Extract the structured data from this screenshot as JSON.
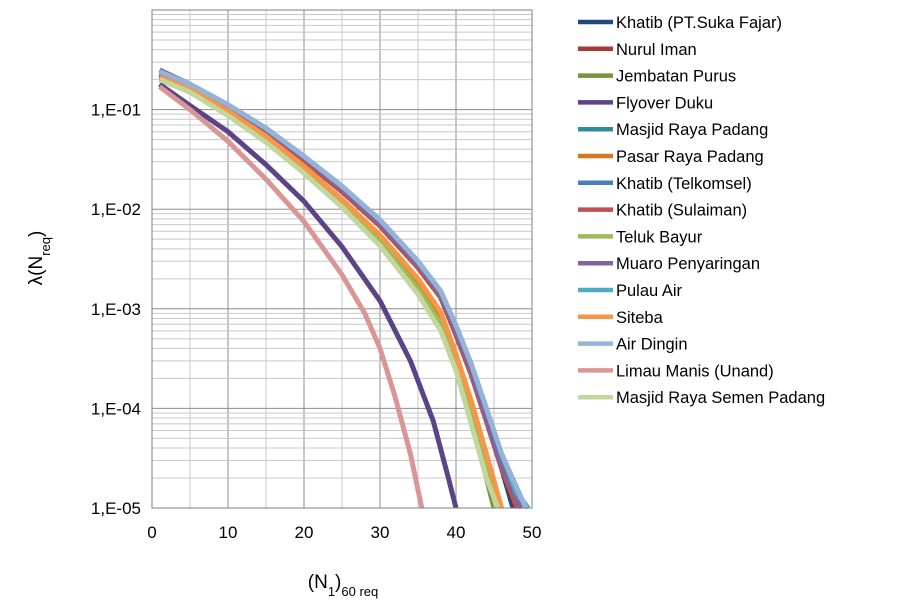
{
  "chart_data": {
    "type": "line",
    "title": "",
    "xlabel_parts": {
      "main": "(N",
      "sub1": "1",
      "mid": ")",
      "sub2": "60 req"
    },
    "ylabel_parts": {
      "main": "λ(N",
      "sub": "req",
      "end": ")"
    },
    "xlim": [
      0,
      50
    ],
    "ylim": [
      1e-05,
      1
    ],
    "y_scale": "log",
    "x_ticks": [
      0,
      10,
      20,
      30,
      40,
      50
    ],
    "x_tick_labels": [
      "0",
      "10",
      "20",
      "30",
      "40",
      "50"
    ],
    "y_ticks": [
      1e-05,
      0.0001,
      0.001,
      0.01,
      0.1
    ],
    "y_tick_labels": [
      "1,E-05",
      "1,E-04",
      "1,E-03",
      "1,E-02",
      "1,E-01"
    ],
    "grid": true,
    "legend_position": "right",
    "series": [
      {
        "name": "Khatib (PT.Suka Fajar)",
        "color": "#1f497d",
        "x": [
          1,
          5,
          10,
          15,
          20,
          25,
          30,
          35,
          38,
          40,
          42,
          44,
          46,
          47.5
        ],
        "y": [
          0.22,
          0.17,
          0.105,
          0.06,
          0.031,
          0.015,
          0.0068,
          0.0026,
          0.0013,
          0.00055,
          0.00022,
          7.5e-05,
          2.5e-05,
          1e-05
        ]
      },
      {
        "name": "Nurul Iman",
        "color": "#a93b36",
        "x": [
          1,
          5,
          10,
          15,
          20,
          25,
          30,
          35,
          38,
          40,
          42,
          44,
          46,
          48
        ],
        "y": [
          0.22,
          0.17,
          0.105,
          0.06,
          0.031,
          0.015,
          0.0068,
          0.0026,
          0.0013,
          0.00055,
          0.00022,
          7.5e-05,
          2.5e-05,
          1e-05
        ]
      },
      {
        "name": "Jembatan Purus",
        "color": "#77933c",
        "x": [
          1,
          5,
          10,
          15,
          20,
          25,
          30,
          35,
          38,
          40,
          42,
          44,
          45
        ],
        "y": [
          0.2,
          0.15,
          0.088,
          0.048,
          0.024,
          0.011,
          0.0045,
          0.0015,
          0.00065,
          0.00027,
          8e-05,
          2e-05,
          1e-05
        ]
      },
      {
        "name": "Flyover Duku",
        "color": "#5c4286",
        "x": [
          1,
          5,
          10,
          15,
          20,
          25,
          30,
          34,
          37,
          39,
          40
        ],
        "y": [
          0.18,
          0.11,
          0.06,
          0.028,
          0.012,
          0.0042,
          0.0012,
          0.0003,
          7.5e-05,
          2e-05,
          1e-05
        ]
      },
      {
        "name": "Masjid Raya Padang",
        "color": "#2e8b99",
        "x": [
          1,
          5,
          10,
          15,
          20,
          25,
          30,
          35,
          38,
          40,
          42,
          44,
          46,
          48.3
        ],
        "y": [
          0.22,
          0.17,
          0.105,
          0.06,
          0.031,
          0.015,
          0.0068,
          0.0026,
          0.0013,
          0.00055,
          0.00022,
          7.5e-05,
          2.5e-05,
          1e-05
        ]
      },
      {
        "name": "Pasar Raya Padang",
        "color": "#d9771e",
        "x": [
          1,
          5,
          10,
          15,
          20,
          25,
          30,
          35,
          38,
          40,
          42,
          44,
          45.5
        ],
        "y": [
          0.21,
          0.16,
          0.095,
          0.052,
          0.026,
          0.012,
          0.0052,
          0.0018,
          0.00085,
          0.0003,
          0.0001,
          3e-05,
          1e-05
        ]
      },
      {
        "name": "Khatib (Telkomsel)",
        "color": "#4a7ebb",
        "x": [
          1,
          5,
          10,
          15,
          20,
          25,
          30,
          35,
          38,
          40,
          42,
          44,
          46,
          48.7
        ],
        "y": [
          0.23,
          0.175,
          0.108,
          0.062,
          0.032,
          0.0155,
          0.007,
          0.0027,
          0.00135,
          0.00058,
          0.00024,
          8e-05,
          2.7e-05,
          1e-05
        ]
      },
      {
        "name": "Khatib (Sulaiman)",
        "color": "#c0504d",
        "x": [
          1,
          5,
          10,
          15,
          20,
          25,
          30,
          35,
          38,
          40,
          42,
          44,
          46,
          48.1
        ],
        "y": [
          0.22,
          0.17,
          0.105,
          0.06,
          0.031,
          0.015,
          0.0068,
          0.0026,
          0.0013,
          0.00055,
          0.00022,
          7.5e-05,
          2.5e-05,
          1e-05
        ]
      },
      {
        "name": "Teluk Bayur",
        "color": "#9bbb59",
        "x": [
          1,
          5,
          10,
          15,
          20,
          25,
          30,
          35,
          38,
          40,
          42,
          44,
          45.3
        ],
        "y": [
          0.2,
          0.152,
          0.09,
          0.049,
          0.025,
          0.0115,
          0.0048,
          0.0016,
          0.0007,
          0.00028,
          9e-05,
          2.5e-05,
          1e-05
        ]
      },
      {
        "name": "Muaro Penyaringan",
        "color": "#8064a2",
        "x": [
          1,
          5,
          10,
          15,
          20,
          25,
          30,
          35,
          38,
          40,
          42,
          44,
          46,
          48.6
        ],
        "y": [
          0.25,
          0.18,
          0.11,
          0.063,
          0.033,
          0.016,
          0.0072,
          0.0028,
          0.0014,
          0.0006,
          0.00024,
          8e-05,
          2.7e-05,
          1e-05
        ]
      },
      {
        "name": "Pulau Air",
        "color": "#4bacc6",
        "x": [
          1,
          5,
          10,
          15,
          20,
          25,
          30,
          35,
          38,
          40,
          42,
          44,
          46,
          48,
          49.5
        ],
        "y": [
          0.24,
          0.18,
          0.112,
          0.065,
          0.034,
          0.017,
          0.0078,
          0.003,
          0.0015,
          0.00068,
          0.00028,
          0.0001,
          3.5e-05,
          1.4e-05,
          1e-05
        ]
      },
      {
        "name": "Siteba",
        "color": "#f79646",
        "x": [
          1,
          5,
          10,
          15,
          20,
          25,
          30,
          35,
          38,
          40,
          42,
          44,
          46
        ],
        "y": [
          0.21,
          0.16,
          0.097,
          0.054,
          0.027,
          0.0125,
          0.0055,
          0.002,
          0.00092,
          0.00035,
          0.00012,
          3.5e-05,
          1e-05
        ]
      },
      {
        "name": "Air Dingin",
        "color": "#95b3d7",
        "x": [
          1,
          5,
          10,
          15,
          20,
          25,
          30,
          35,
          38,
          40,
          42,
          44,
          46,
          49.2
        ],
        "y": [
          0.24,
          0.18,
          0.112,
          0.065,
          0.034,
          0.017,
          0.0078,
          0.003,
          0.0015,
          0.00068,
          0.00028,
          0.0001,
          3.5e-05,
          1e-05
        ]
      },
      {
        "name": "Limau Manis (Unand)",
        "color": "#d99694",
        "x": [
          1,
          5,
          10,
          15,
          20,
          25,
          28,
          30,
          32,
          34,
          35.5
        ],
        "y": [
          0.17,
          0.1,
          0.048,
          0.02,
          0.0075,
          0.0022,
          0.0009,
          0.0004,
          0.00013,
          3.5e-05,
          1e-05
        ]
      },
      {
        "name": "Masjid Raya Semen Padang",
        "color": "#c3d69b",
        "x": [
          1,
          5,
          10,
          15,
          20,
          25,
          30,
          35,
          38,
          40,
          42,
          44,
          45.5
        ],
        "y": [
          0.2,
          0.15,
          0.087,
          0.047,
          0.023,
          0.0105,
          0.0043,
          0.0014,
          0.0006,
          0.00024,
          7e-05,
          2e-05,
          1e-05
        ]
      }
    ]
  }
}
